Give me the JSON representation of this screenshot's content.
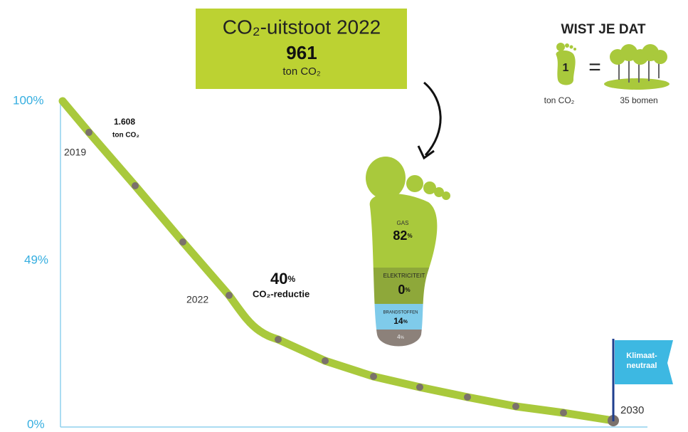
{
  "header": {
    "title": "CO₂-uitstoot 2022",
    "value": "961",
    "unit": "ton CO₂"
  },
  "axis": {
    "labels": [
      "100%",
      "49%",
      "0%"
    ]
  },
  "annotations": {
    "start_value": "1.608",
    "start_unit": "ton CO₂",
    "start_year": "2019",
    "mid_year": "2022",
    "reduction_value": "40",
    "reduction_unit": "%",
    "reduction_label": "CO₂-reductie",
    "end_year": "2030",
    "flag": [
      "Klimaat-",
      "neutraal"
    ]
  },
  "footprint": {
    "segments": [
      {
        "label": "GAS",
        "value": "82",
        "unit": "%"
      },
      {
        "label": "ELEKTRICITEIT",
        "value": "0",
        "unit": "%"
      },
      {
        "label": "BRANDSTOFFEN",
        "value": "14",
        "unit": "%"
      },
      {
        "value": "4",
        "unit": "%"
      }
    ]
  },
  "fact": {
    "title": "WIST JE DAT",
    "footprint_value": "1",
    "equals": "=",
    "left_caption": "ton CO₂",
    "right_caption": "35 bomen"
  }
}
